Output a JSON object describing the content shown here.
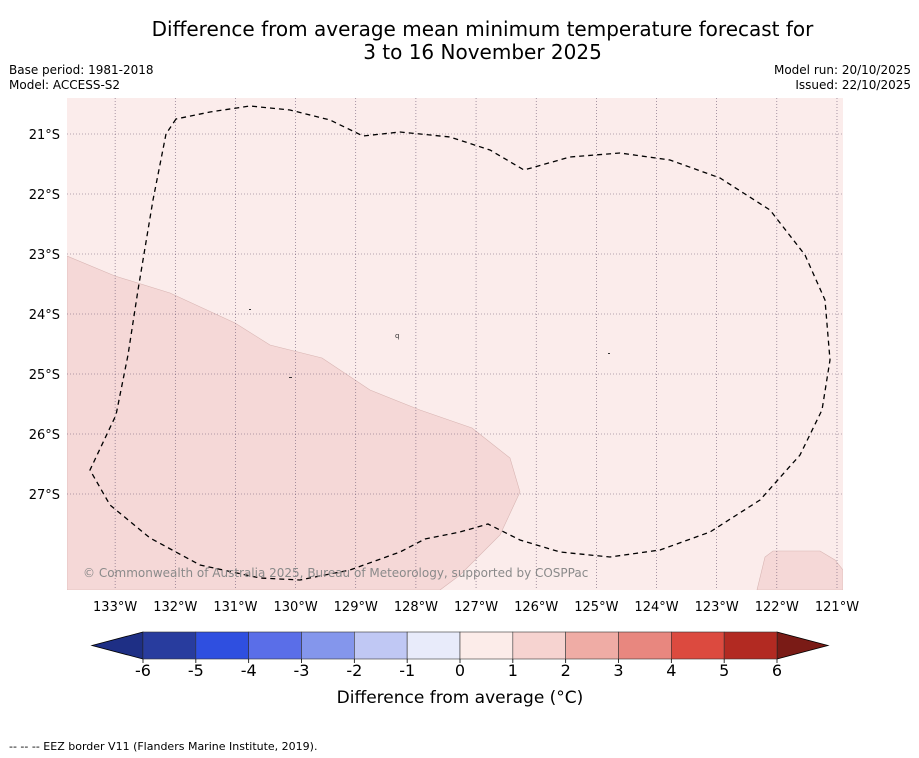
{
  "title": {
    "line1": "Difference from average mean minimum temperature forecast for",
    "line2": "3 to 16 November 2025"
  },
  "meta": {
    "base_period": "Base period: 1981-2018",
    "model": "Model: ACCESS-S2",
    "model_run": "Model run: 20/10/2025",
    "issued": "Issued: 22/10/2025"
  },
  "map": {
    "lon_labels": [
      "133°W",
      "132°W",
      "131°W",
      "130°W",
      "129°W",
      "128°W",
      "127°W",
      "126°W",
      "125°W",
      "124°W",
      "123°W",
      "122°W",
      "121°W"
    ],
    "lat_labels": [
      "21°S",
      "22°S",
      "23°S",
      "24°S",
      "25°S",
      "26°S",
      "27°S"
    ],
    "lon_range": [
      -133.8,
      -120.9
    ],
    "lat_range": [
      -28.6,
      -20.4
    ],
    "regions": [
      {
        "name": "background",
        "category": "0 to 1",
        "color": "#fbeceb"
      },
      {
        "name": "southwest-patch",
        "category": "1 to 2",
        "color": "#f5d8d7"
      },
      {
        "name": "southeast-patch",
        "category": "1 to 2",
        "color": "#f5d8d7"
      }
    ],
    "copyright": "© Commonwealth of Australia 2025, Bureau of Meteorology, supported by COSPPac"
  },
  "colorbar": {
    "ticks": [
      "-6",
      "-5",
      "-4",
      "-3",
      "-2",
      "-1",
      "0",
      "1",
      "2",
      "3",
      "4",
      "5",
      "6"
    ],
    "colors": [
      "#283c9e",
      "#2f4fe0",
      "#5a6ee8",
      "#8496ec",
      "#c0c8f4",
      "#e8ebfa",
      "#fcece9",
      "#f6d3d0",
      "#efaca5",
      "#e8877f",
      "#dc4a3f",
      "#b22a22"
    ],
    "under_color": "#1e2f85",
    "over_color": "#7a1b16",
    "label": "Difference from average (°C)"
  },
  "footer": {
    "legend": "--  --  -- EEZ border V11 (Flanders Marine Institute, 2019)."
  }
}
